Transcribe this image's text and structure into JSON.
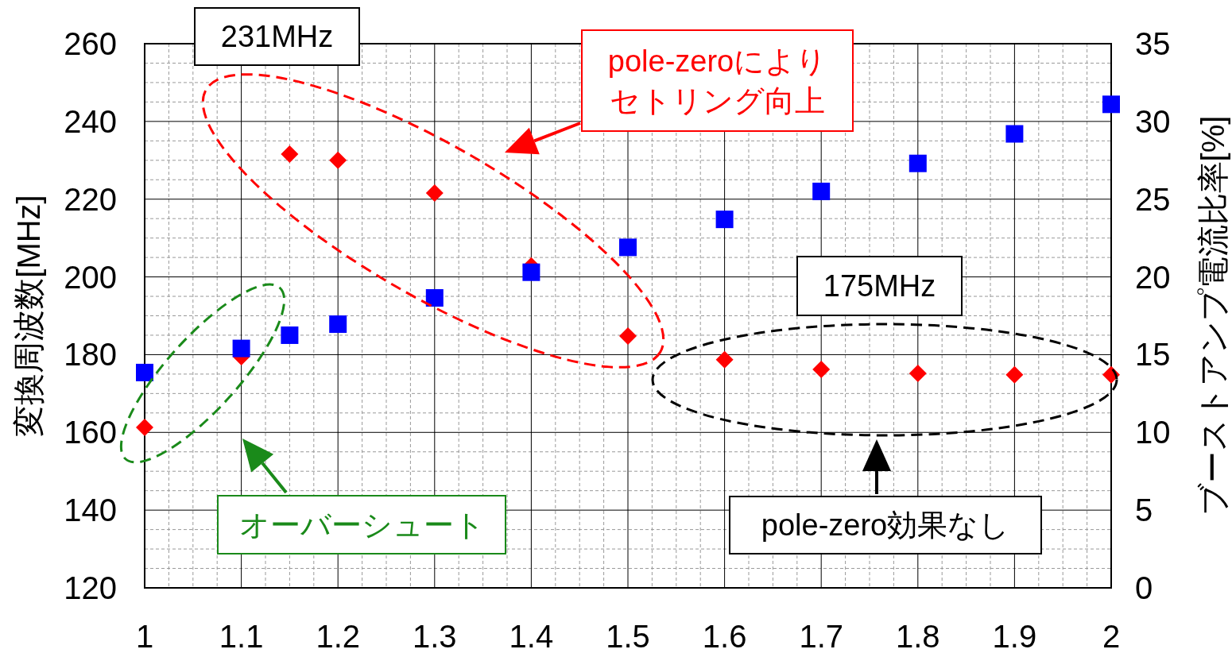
{
  "chart_data": {
    "type": "scatter",
    "ylabel": "変換周波数[MHz]",
    "y2label": "ブーストアンプ電流比率[%]",
    "x": [
      1,
      1.1,
      1.15,
      1.2,
      1.3,
      1.4,
      1.5,
      1.6,
      1.7,
      1.8,
      1.9,
      2
    ],
    "series": [
      {
        "color": "#ff0000",
        "marker": "diamond",
        "values": [
          161.3,
          179.5,
          231.6,
          230,
          221.6,
          202.8,
          184.8,
          178.7,
          176.2,
          175.2,
          174.8,
          174.8
        ]
      },
      {
        "color": "#0000ff",
        "marker": "square",
        "axis": "y2",
        "values": [
          13.85,
          15.4,
          16.25,
          16.96,
          18.65,
          20.3,
          21.9,
          23.7,
          25.5,
          27.3,
          29.2,
          31.1
        ]
      }
    ],
    "xlim": [
      1,
      2
    ],
    "xticks": [
      1,
      1.1,
      1.2,
      1.3,
      1.4,
      1.5,
      1.6,
      1.7,
      1.8,
      1.9,
      2
    ],
    "ylim": [
      120,
      260
    ],
    "yticks": [
      120,
      140,
      160,
      180,
      200,
      220,
      240,
      260
    ],
    "y2lim": [
      0,
      35
    ],
    "y2ticks": [
      0,
      5,
      10,
      15,
      20,
      25,
      30,
      35
    ],
    "grid": true,
    "annotations": [
      "231MHz",
      "pole-zeroにより",
      "セトリング向上",
      "オーバーシュート",
      "175MHz",
      "pole-zero効果なし"
    ]
  }
}
